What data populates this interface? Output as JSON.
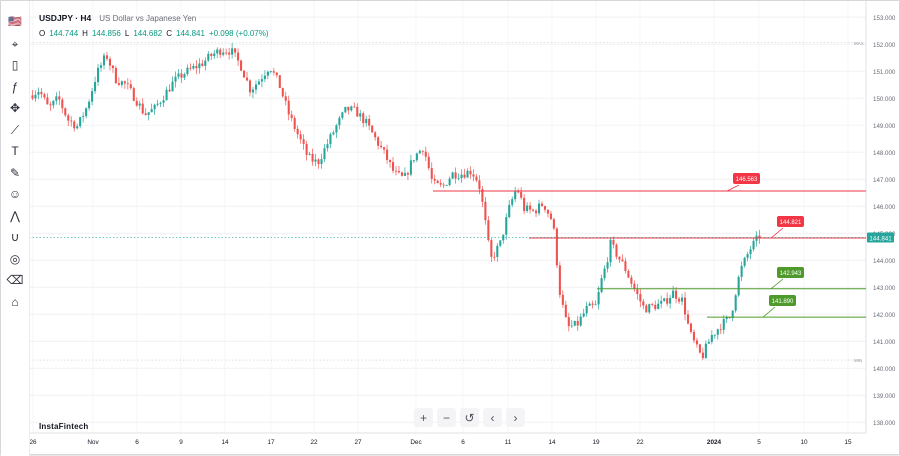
{
  "legend": {
    "symbol": "USDJPY · H4",
    "name": "US Dollar vs Japanese Yen",
    "o_label": "O",
    "o_value": "144.744",
    "h_label": "H",
    "h_value": "144.856",
    "l_label": "L",
    "l_value": "144.682",
    "c_label": "C",
    "c_value": "144.841",
    "change": "+0.098 (+0.07%)"
  },
  "toolbar": {
    "icons": [
      "flag-icon",
      "cursor-icon",
      "candles-icon",
      "fx-icon",
      "crosshair-move-icon",
      "trend-line-icon",
      "text-icon",
      "brush-icon",
      "smiley-icon",
      "pattern-icon",
      "magnet-icon",
      "eye-off-icon",
      "trash-icon",
      "home-icon"
    ]
  },
  "zoom": {
    "icons": [
      "zoom-in-icon",
      "zoom-out-icon",
      "reset-icon",
      "scroll-left-icon",
      "scroll-right-icon"
    ]
  },
  "brand": "InstaFintech",
  "chart_data": {
    "type": "candlestick",
    "symbol": "USDJPY",
    "timeframe": "H4",
    "y_ticks": [
      "153.000",
      "152.000",
      "151.000",
      "150.000",
      "149.000",
      "148.000",
      "147.000",
      "146.000",
      "145.000",
      "144.000",
      "143.000",
      "142.000",
      "141.000",
      "140.000",
      "139.000",
      "138.000"
    ],
    "ylim": [
      137.6,
      153.3
    ],
    "x_ticks": [
      "26",
      "Nov",
      "6",
      "9",
      "14",
      "17",
      "22",
      "27",
      "Dec",
      "6",
      "11",
      "14",
      "19",
      "22",
      "2024",
      "5",
      "10",
      "15"
    ],
    "max_label": "MAX",
    "min_label": "MIN",
    "max_value": 152.05,
    "min_value": 140.3,
    "current_price": "144.841",
    "path_points": [
      [
        0,
        150.1
      ],
      [
        4,
        150.3
      ],
      [
        8,
        149.6
      ],
      [
        12,
        150.0
      ],
      [
        16,
        149.2
      ],
      [
        20,
        148.95
      ],
      [
        24,
        149.7
      ],
      [
        28,
        150.9
      ],
      [
        32,
        151.6
      ],
      [
        36,
        150.7
      ],
      [
        40,
        150.5
      ],
      [
        44,
        150.0
      ],
      [
        48,
        149.4
      ],
      [
        52,
        149.6
      ],
      [
        56,
        150.1
      ],
      [
        60,
        150.6
      ],
      [
        64,
        150.9
      ],
      [
        68,
        151.1
      ],
      [
        72,
        151.3
      ],
      [
        76,
        151.6
      ],
      [
        80,
        151.8
      ],
      [
        84,
        151.75
      ],
      [
        88,
        151.2
      ],
      [
        92,
        150.3
      ],
      [
        96,
        150.7
      ],
      [
        100,
        151.2
      ],
      [
        104,
        150.5
      ],
      [
        108,
        149.4
      ],
      [
        112,
        148.6
      ],
      [
        116,
        147.8
      ],
      [
        120,
        147.6
      ],
      [
        124,
        148.3
      ],
      [
        128,
        149.0
      ],
      [
        132,
        149.6
      ],
      [
        136,
        149.5
      ],
      [
        140,
        149.1
      ],
      [
        144,
        148.5
      ],
      [
        148,
        147.9
      ],
      [
        152,
        147.2
      ],
      [
        156,
        147.0
      ],
      [
        160,
        147.8
      ],
      [
        164,
        148.2
      ],
      [
        168,
        146.8
      ],
      [
        172,
        146.7
      ],
      [
        176,
        147.2
      ],
      [
        180,
        147.2
      ],
      [
        184,
        147.3
      ],
      [
        187,
        146.9
      ],
      [
        189,
        145.9
      ],
      [
        192,
        144.0
      ],
      [
        196,
        144.6
      ],
      [
        200,
        146.0
      ],
      [
        203,
        146.7
      ],
      [
        206,
        145.9
      ],
      [
        210,
        145.8
      ],
      [
        214,
        146.1
      ],
      [
        218,
        145.4
      ],
      [
        221,
        142.7
      ],
      [
        224,
        141.5
      ],
      [
        228,
        141.6
      ],
      [
        232,
        142.2
      ],
      [
        236,
        142.3
      ],
      [
        238,
        143.2
      ],
      [
        240,
        143.8
      ],
      [
        242,
        144.6
      ],
      [
        244,
        144.3
      ],
      [
        248,
        143.7
      ],
      [
        252,
        142.9
      ],
      [
        256,
        142.2
      ],
      [
        260,
        142.3
      ],
      [
        264,
        142.4
      ],
      [
        268,
        142.8
      ],
      [
        272,
        142.5
      ],
      [
        275,
        141.3
      ],
      [
        278,
        140.7
      ],
      [
        280,
        140.4
      ],
      [
        284,
        141.2
      ],
      [
        288,
        141.6
      ],
      [
        292,
        141.9
      ],
      [
        294,
        142.8
      ],
      [
        296,
        143.6
      ],
      [
        300,
        144.4
      ],
      [
        304,
        144.9
      ]
    ],
    "horizontal_levels": [
      {
        "value": "146.563",
        "price": 146.56,
        "color": "#f23645"
      },
      {
        "value": "144.821",
        "price": 144.82,
        "color": "#f23645"
      },
      {
        "value": "142.943",
        "price": 142.94,
        "color": "#4e9a2a"
      },
      {
        "value": "141.890",
        "price": 141.89,
        "color": "#4e9a2a"
      }
    ],
    "colors": {
      "up": "#26a69a",
      "down": "#ef5350",
      "grid": "#e8e9ee"
    }
  }
}
